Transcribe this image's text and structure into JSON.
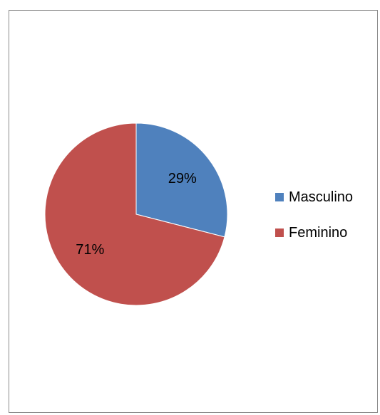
{
  "chart_data": {
    "type": "pie",
    "title": "",
    "slices": [
      {
        "label": "Masculino",
        "value": 29,
        "display": "29%",
        "color": "#4f81bd"
      },
      {
        "label": "Feminino",
        "value": 71,
        "display": "71%",
        "color": "#c0504d"
      }
    ],
    "legend": {
      "position": "right",
      "entries": [
        "Masculino",
        "Feminino"
      ]
    },
    "start_angle_deg": 0,
    "direction": "clockwise"
  }
}
